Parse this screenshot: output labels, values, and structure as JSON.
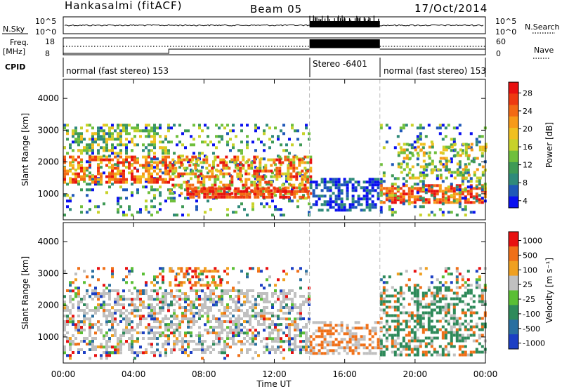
{
  "header": {
    "station": "Hankasalmi (fitACF)",
    "beam": "Beam 05",
    "date": "17/Oct/2014"
  },
  "strip_labels": {
    "nsky": "N.Sky",
    "nsearch": "N.Search",
    "freq": "Freq.",
    "freq_unit": "[MHz]",
    "nave": "Nave",
    "cpid": "CPID",
    "nsky_ticks": [
      "10^5",
      "10^0"
    ],
    "freq_ticks": [
      "18",
      "8"
    ],
    "nave_ticks": [
      "60",
      "0"
    ]
  },
  "cpid_segments": [
    {
      "label": "normal (fast stereo) 153",
      "start_hour": 0,
      "end_hour": 14
    },
    {
      "label": "Stereo -6401",
      "start_hour": 14,
      "end_hour": 18
    },
    {
      "label": "normal (fast stereo) 153",
      "start_hour": 18,
      "end_hour": 24
    }
  ],
  "chart_data": [
    {
      "type": "heatmap",
      "panel": "power",
      "xlabel": "",
      "ylabel": "Slant Range [km]",
      "ylim": [
        180,
        4600
      ],
      "xlim": [
        0,
        24
      ],
      "y_ticks": [
        1000,
        2000,
        3000,
        4000
      ],
      "colorbar": {
        "label": "Power [dB]",
        "ticks": [
          "28",
          "24",
          "20",
          "16",
          "12",
          "8",
          "4"
        ],
        "range": [
          0,
          30
        ],
        "colors": [
          "#0a10f0",
          "#1f58b8",
          "#2f8a7a",
          "#3f9a55",
          "#6fbf3c",
          "#c8d22a",
          "#f0c020",
          "#f79a18",
          "#f36a14",
          "#ee3a10",
          "#e81010"
        ]
      },
      "notes": "scatter echoes 300-3200 km; Stereo interval 14-18 UT shows low-power echoes 500-1500 km"
    },
    {
      "type": "heatmap",
      "panel": "velocity",
      "xlabel": "Time UT",
      "ylabel": "Slant Range [km]",
      "ylim": [
        180,
        4600
      ],
      "xlim": [
        0,
        24
      ],
      "y_ticks": [
        1000,
        2000,
        3000,
        4000
      ],
      "x_ticks": [
        "00:00",
        "04:00",
        "08:00",
        "12:00",
        "16:00",
        "20:00",
        "00:00"
      ],
      "colorbar": {
        "label": "Velocity [m s⁻¹]",
        "ticks": [
          "1000",
          "500",
          "100",
          "25",
          "-25",
          "-100",
          "-500",
          "-1000"
        ],
        "range": [
          -1000,
          1000
        ],
        "colors": [
          "#1c3fc4",
          "#2a6fa0",
          "#2e8a5a",
          "#5abf35",
          "#c0c0c0",
          "#f0a020",
          "#f07018",
          "#e81010"
        ]
      },
      "notes": "mostly ground scatter (grey) 500-2500 km; Stereo interval 14-18 UT shows mixed echoes 500-1500 km"
    }
  ],
  "colors": {
    "stereo_band": "#000000",
    "dashed_separator": "#bbbbbb"
  }
}
